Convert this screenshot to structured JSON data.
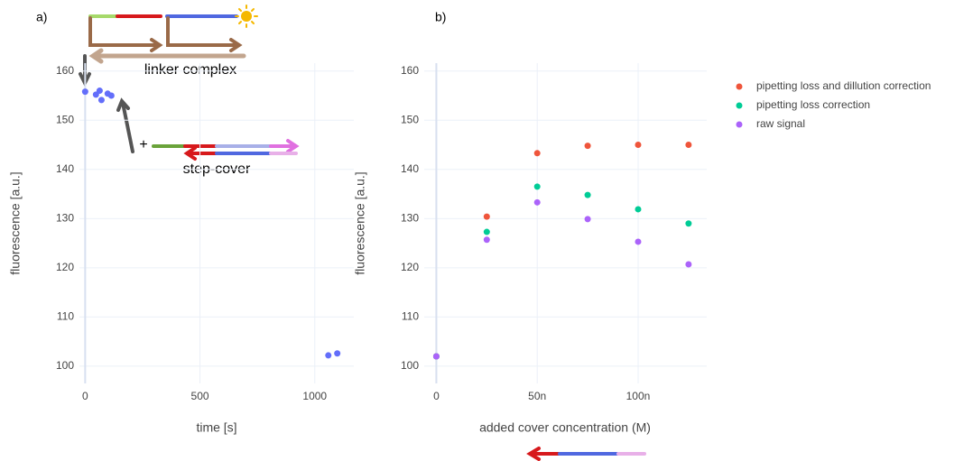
{
  "chart_data": [
    {
      "type": "scatter",
      "panel_label": "a)",
      "x_label": "time [s]",
      "y_label": "fluorescence [a.u.]",
      "annotations": [
        "linker complex",
        "step-cover",
        "+"
      ],
      "xlim": [
        -25,
        1170
      ],
      "xticks": [
        0,
        500,
        1000
      ],
      "ylim": [
        96.5,
        161.6
      ],
      "yticks": [
        100,
        110,
        120,
        130,
        140,
        150,
        160
      ],
      "grid": true,
      "series": [
        {
          "color": "#636efa",
          "x": [
            0,
            47,
            63,
            71,
            98,
            114,
            1059,
            1098
          ],
          "values": [
            155.8,
            155.2,
            156.0,
            154.1,
            155.4,
            155.0,
            102.2,
            102.6
          ]
        }
      ]
    },
    {
      "type": "scatter",
      "panel_label": "b)",
      "x_label": "added cover concentration (M)",
      "y_label": "fluorescence [a.u.]",
      "xlim": [
        -6e-09,
        1.34e-07
      ],
      "xticks": [
        0,
        {
          "value": 5e-08,
          "label": "50n"
        },
        {
          "value": 1e-07,
          "label": "100n"
        }
      ],
      "ylim": [
        96.5,
        161.6
      ],
      "yticks": [
        100,
        110,
        120,
        130,
        140,
        150,
        160
      ],
      "grid": true,
      "legend": "top-right",
      "series": [
        {
          "name": "pipetting loss and dillution correction",
          "color": "#ef553b",
          "x": [
            0,
            2.5e-08,
            5e-08,
            7.5e-08,
            1e-07,
            1.25e-07
          ],
          "values": [
            102,
            130.4,
            143.3,
            144.8,
            145.0,
            145.0
          ]
        },
        {
          "name": "pipetting loss correction",
          "color": "#00cc96",
          "x": [
            0,
            2.5e-08,
            5e-08,
            7.5e-08,
            1e-07,
            1.25e-07
          ],
          "values": [
            102,
            127.3,
            136.5,
            134.8,
            131.9,
            129.0
          ]
        },
        {
          "name": "raw signal",
          "color": "#ab63fa",
          "x": [
            0,
            2.5e-08,
            5e-08,
            7.5e-08,
            1e-07,
            1.25e-07
          ],
          "values": [
            102,
            125.7,
            133.3,
            129.9,
            125.3,
            120.7
          ]
        }
      ]
    }
  ]
}
